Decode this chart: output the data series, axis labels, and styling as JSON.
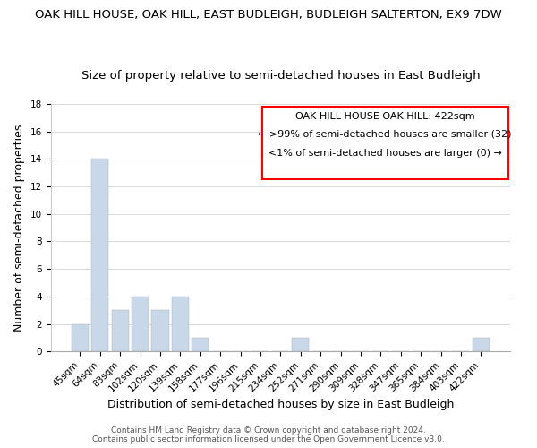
{
  "title": "OAK HILL HOUSE, OAK HILL, EAST BUDLEIGH, BUDLEIGH SALTERTON, EX9 7DW",
  "subtitle": "Size of property relative to semi-detached houses in East Budleigh",
  "xlabel": "Distribution of semi-detached houses by size in East Budleigh",
  "ylabel": "Number of semi-detached properties",
  "bar_labels": [
    "45sqm",
    "64sqm",
    "83sqm",
    "102sqm",
    "120sqm",
    "139sqm",
    "158sqm",
    "177sqm",
    "196sqm",
    "215sqm",
    "234sqm",
    "252sqm",
    "271sqm",
    "290sqm",
    "309sqm",
    "328sqm",
    "347sqm",
    "365sqm",
    "384sqm",
    "403sqm",
    "422sqm"
  ],
  "bar_values": [
    2,
    14,
    3,
    4,
    3,
    4,
    1,
    0,
    0,
    0,
    0,
    1,
    0,
    0,
    0,
    0,
    0,
    0,
    0,
    0,
    1
  ],
  "bar_color": "#c8d8e8",
  "highlight_bar_index": 20,
  "ylim": [
    0,
    18
  ],
  "yticks": [
    0,
    2,
    4,
    6,
    8,
    10,
    12,
    14,
    16,
    18
  ],
  "legend_title": "OAK HILL HOUSE OAK HILL: 422sqm",
  "legend_line1": "← >99% of semi-detached houses are smaller (32)",
  "legend_line2": "<1% of semi-detached houses are larger (0) →",
  "footer_line1": "Contains HM Land Registry data © Crown copyright and database right 2024.",
  "footer_line2": "Contains public sector information licensed under the Open Government Licence v3.0.",
  "title_fontsize": 9.5,
  "subtitle_fontsize": 9.5,
  "axis_label_fontsize": 9,
  "tick_fontsize": 7.5,
  "legend_fontsize": 8,
  "footer_fontsize": 6.5
}
